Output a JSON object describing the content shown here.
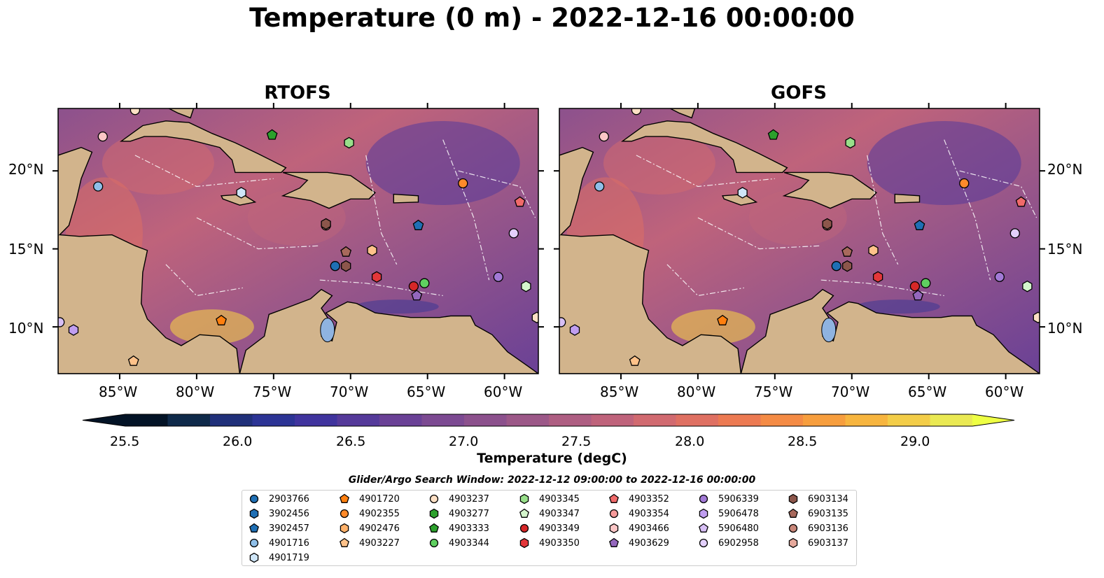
{
  "title": "Temperature (0 m) - 2022-12-16 00:00:00",
  "panels": [
    {
      "title": "RTOFS"
    },
    {
      "title": "GOFS"
    }
  ],
  "axes": {
    "lon_ticks": [
      "85°W",
      "80°W",
      "75°W",
      "70°W",
      "65°W",
      "60°W"
    ],
    "lat_ticks": [
      "20°N",
      "15°N",
      "10°N"
    ],
    "lon_range": [
      -89,
      -57.8
    ],
    "lat_range": [
      7,
      24
    ]
  },
  "colorbar": {
    "label": "Temperature (degC)",
    "ticks": [
      "25.5",
      "26.0",
      "26.5",
      "27.0",
      "27.5",
      "28.0",
      "28.5",
      "29.0"
    ],
    "range": [
      25.3,
      29.2
    ],
    "colors": [
      "#031326",
      "#0f2a4a",
      "#20307a",
      "#2c3495",
      "#40349e",
      "#553a9a",
      "#6a4196",
      "#7c4a92",
      "#8c518d",
      "#9c5888",
      "#ae5e82",
      "#bf637b",
      "#d16a70",
      "#df7062",
      "#ec7a52",
      "#f48b45",
      "#f79e3e",
      "#f7b53f",
      "#f3cd48",
      "#eae953"
    ]
  },
  "legend": {
    "title": "Glider/Argo Search Window: 2022-12-12 09:00:00 to 2022-12-16 00:00:00",
    "columns": [
      [
        {
          "id": "2903766",
          "shape": "circle",
          "color": "#1f6fb4"
        },
        {
          "id": "3902456",
          "shape": "hexagon",
          "color": "#1f6fb4"
        },
        {
          "id": "3902457",
          "shape": "pentagon",
          "color": "#1f6fb4"
        },
        {
          "id": "4901716",
          "shape": "circle",
          "color": "#8fbfe8"
        },
        {
          "id": "4901719",
          "shape": "hexagon",
          "color": "#cfe6f8"
        }
      ],
      [
        {
          "id": "4901720",
          "shape": "pentagon",
          "color": "#ff7f0e"
        },
        {
          "id": "4902355",
          "shape": "circle",
          "color": "#ff8a2a"
        },
        {
          "id": "4902476",
          "shape": "hexagon",
          "color": "#ffb26b"
        },
        {
          "id": "4903227",
          "shape": "pentagon",
          "color": "#ffc28a"
        }
      ],
      [
        {
          "id": "4903237",
          "shape": "circle",
          "color": "#fde0c5"
        },
        {
          "id": "4903277",
          "shape": "hexagon",
          "color": "#2ca02c"
        },
        {
          "id": "4903333",
          "shape": "pentagon",
          "color": "#2ca02c"
        },
        {
          "id": "4903344",
          "shape": "circle",
          "color": "#5fd060"
        }
      ],
      [
        {
          "id": "4903345",
          "shape": "hexagon",
          "color": "#98df8a"
        },
        {
          "id": "4903347",
          "shape": "pentagon",
          "color": "#d4f5cc"
        },
        {
          "id": "4903349",
          "shape": "circle",
          "color": "#d62728"
        },
        {
          "id": "4903350",
          "shape": "hexagon",
          "color": "#e3373a"
        }
      ],
      [
        {
          "id": "4903352",
          "shape": "pentagon",
          "color": "#f06a6a"
        },
        {
          "id": "4903354",
          "shape": "circle",
          "color": "#f59a9a"
        },
        {
          "id": "4903466",
          "shape": "hexagon",
          "color": "#fbc6c6"
        },
        {
          "id": "4903629",
          "shape": "pentagon",
          "color": "#9467bd"
        }
      ],
      [
        {
          "id": "5906339",
          "shape": "circle",
          "color": "#a27ad6"
        },
        {
          "id": "5906478",
          "shape": "hexagon",
          "color": "#c09ef0"
        },
        {
          "id": "5906480",
          "shape": "pentagon",
          "color": "#d7bff5"
        },
        {
          "id": "6902958",
          "shape": "circle",
          "color": "#e3d0fb"
        }
      ],
      [
        {
          "id": "6903134",
          "shape": "hexagon",
          "color": "#8c564b"
        },
        {
          "id": "6903135",
          "shape": "pentagon",
          "color": "#a8695c"
        },
        {
          "id": "6903136",
          "shape": "circle",
          "color": "#c9877a"
        },
        {
          "id": "6903137",
          "shape": "hexagon",
          "color": "#e6a99c"
        }
      ]
    ]
  },
  "markers": [
    {
      "lon": -86.1,
      "lat": 22.2,
      "shape": "circle",
      "color": "#fbc6c6"
    },
    {
      "lon": -84.0,
      "lat": 23.9,
      "shape": "circle",
      "color": "#fde0c5"
    },
    {
      "lon": -86.4,
      "lat": 19.0,
      "shape": "circle",
      "color": "#8fbfe8"
    },
    {
      "lon": -75.1,
      "lat": 22.3,
      "shape": "pentagon",
      "color": "#2ca02c"
    },
    {
      "lon": -70.1,
      "lat": 21.8,
      "shape": "hexagon",
      "color": "#98df8a"
    },
    {
      "lon": -77.1,
      "lat": 18.6,
      "shape": "hexagon",
      "color": "#cfe6f8"
    },
    {
      "lon": -62.7,
      "lat": 19.2,
      "shape": "circle",
      "color": "#ff8a2a"
    },
    {
      "lon": -59.0,
      "lat": 18.0,
      "shape": "pentagon",
      "color": "#f06a6a"
    },
    {
      "lon": -71.6,
      "lat": 16.5,
      "shape": "circle",
      "color": "#c9877a"
    },
    {
      "lon": -71.6,
      "lat": 16.6,
      "shape": "hexagon",
      "color": "#8c564b"
    },
    {
      "lon": -65.6,
      "lat": 16.5,
      "shape": "pentagon",
      "color": "#1f6fb4"
    },
    {
      "lon": -59.4,
      "lat": 16.0,
      "shape": "circle",
      "color": "#e3d0fb"
    },
    {
      "lon": -70.3,
      "lat": 14.8,
      "shape": "pentagon",
      "color": "#a8695c"
    },
    {
      "lon": -68.6,
      "lat": 14.9,
      "shape": "hexagon",
      "color": "#ffc28a"
    },
    {
      "lon": -71.0,
      "lat": 13.9,
      "shape": "circle",
      "color": "#1f6fb4"
    },
    {
      "lon": -70.3,
      "lat": 13.9,
      "shape": "hexagon",
      "color": "#8c564b"
    },
    {
      "lon": -68.3,
      "lat": 13.2,
      "shape": "hexagon",
      "color": "#e3373a"
    },
    {
      "lon": -65.2,
      "lat": 12.8,
      "shape": "circle",
      "color": "#5fd060"
    },
    {
      "lon": -65.9,
      "lat": 12.6,
      "shape": "circle",
      "color": "#d62728"
    },
    {
      "lon": -65.7,
      "lat": 12.0,
      "shape": "pentagon",
      "color": "#9467bd"
    },
    {
      "lon": -60.4,
      "lat": 13.2,
      "shape": "circle",
      "color": "#a27ad6"
    },
    {
      "lon": -58.6,
      "lat": 12.6,
      "shape": "hexagon",
      "color": "#d4f5cc"
    },
    {
      "lon": -78.4,
      "lat": 10.4,
      "shape": "pentagon",
      "color": "#ff7f0e"
    },
    {
      "lon": -88.0,
      "lat": 9.8,
      "shape": "hexagon",
      "color": "#c09ef0"
    },
    {
      "lon": -84.1,
      "lat": 7.8,
      "shape": "pentagon",
      "color": "#ffc28a"
    },
    {
      "lon": -57.9,
      "lat": 10.6,
      "shape": "hexagon",
      "color": "#fde0c5"
    },
    {
      "lon": -88.9,
      "lat": 10.3,
      "shape": "circle",
      "color": "#d7bff5"
    }
  ]
}
